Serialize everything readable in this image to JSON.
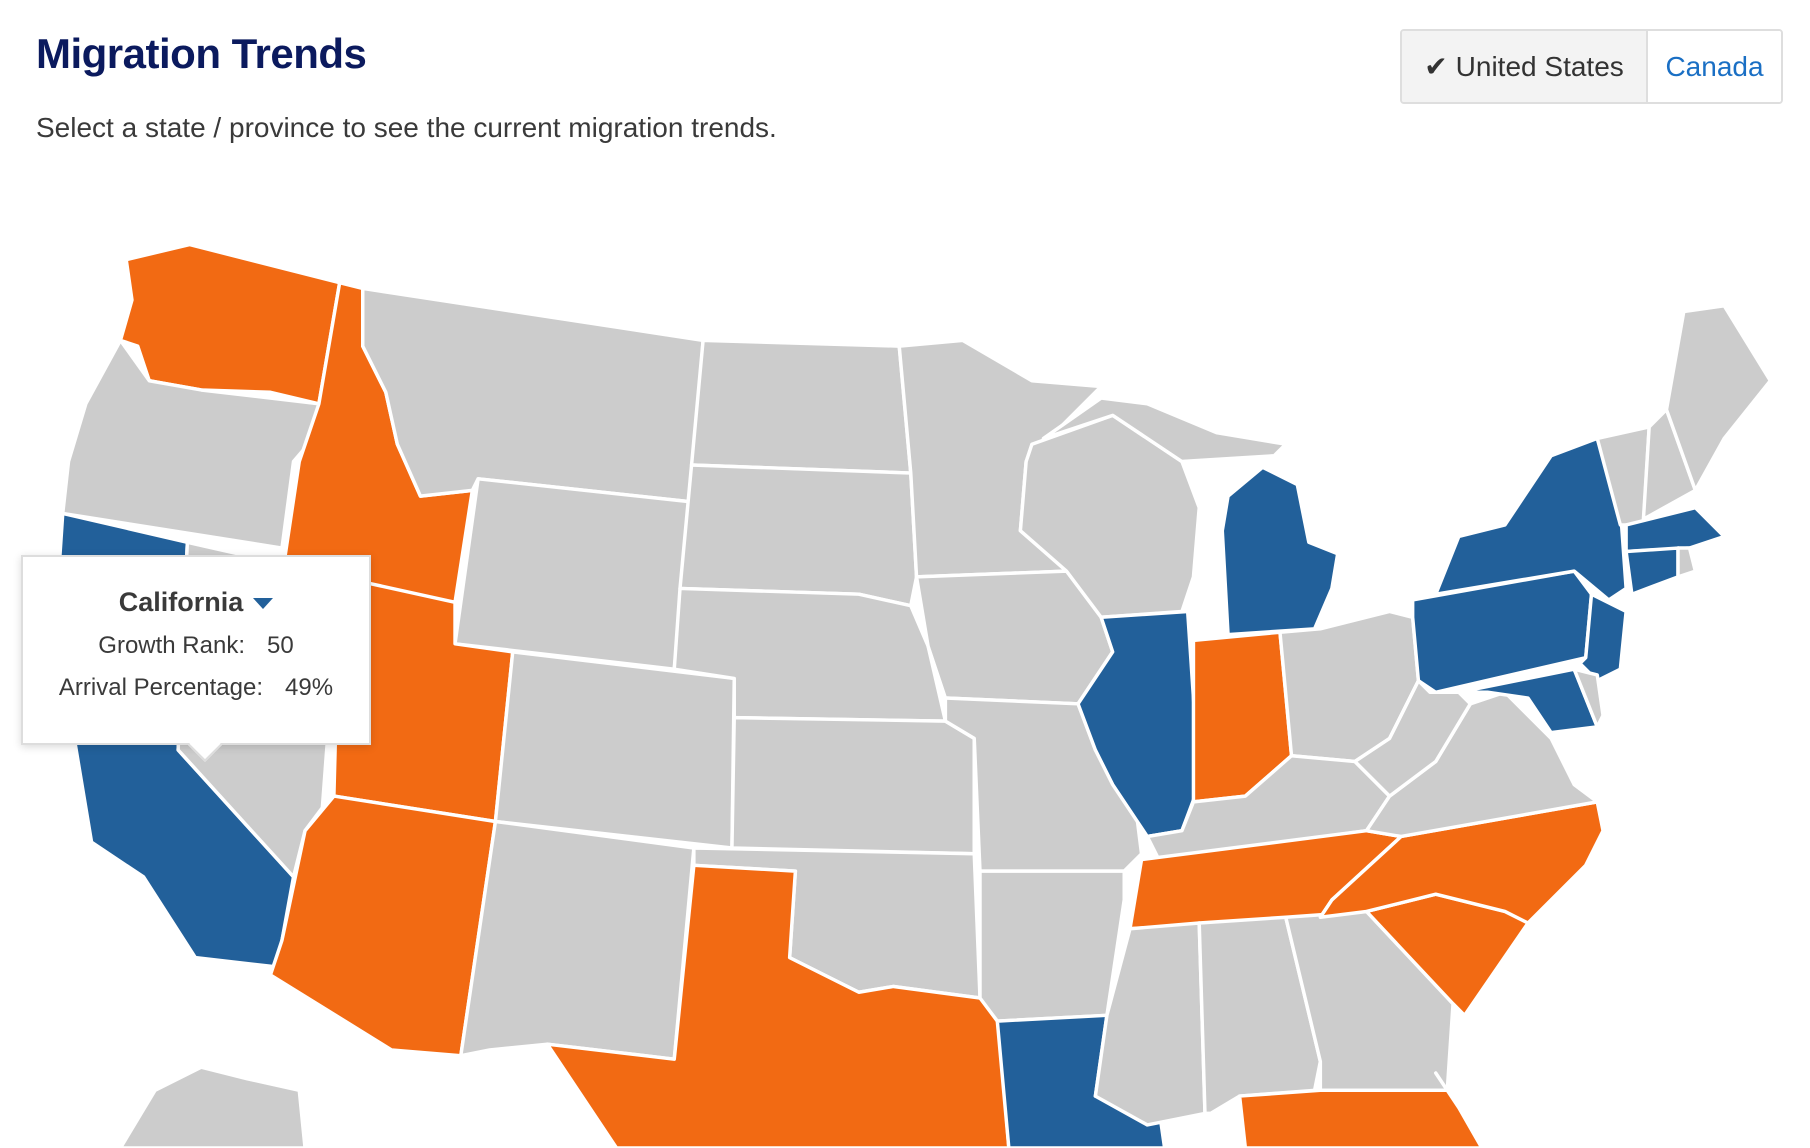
{
  "header": {
    "title": "Migration Trends",
    "subtitle": "Select a state / province to see the current migration trends."
  },
  "country_toggle": {
    "options": [
      {
        "label": "United States",
        "selected": true,
        "icon": "check-icon"
      },
      {
        "label": "Canada",
        "selected": false
      }
    ]
  },
  "legend_colors": {
    "growth": "#f26a13",
    "decline": "#22609a",
    "neutral": "#cccccc"
  },
  "map": {
    "orange": [
      "WA",
      "ID",
      "UT",
      "AZ",
      "TX",
      "IN",
      "TN",
      "NC",
      "SC",
      "FL"
    ],
    "blue": [
      "CA",
      "IL",
      "MI",
      "LA",
      "NY",
      "PA",
      "NJ",
      "MD",
      "CT",
      "MA"
    ]
  },
  "tooltip": {
    "state": "California",
    "trend_icon": "caret-down-icon",
    "growth_rank_label": "Growth Rank:",
    "growth_rank": "50",
    "arrival_label": "Arrival Percentage:",
    "arrival_percentage": "49%"
  }
}
